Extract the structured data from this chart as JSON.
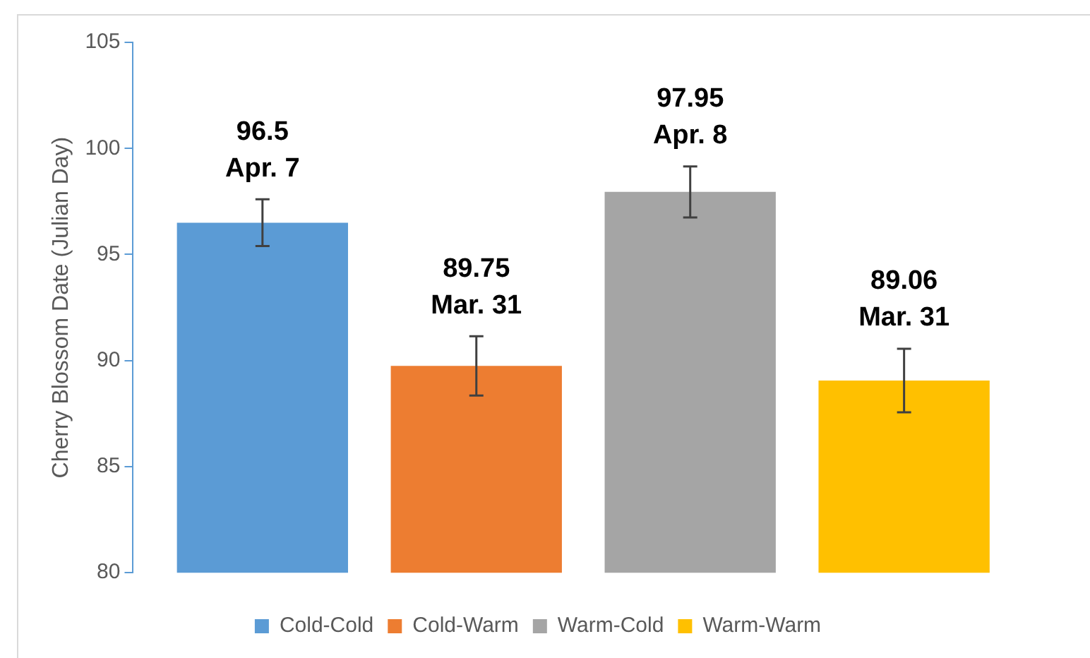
{
  "chart_data": {
    "type": "bar",
    "ylabel": "Cherry Blossom Date (Julian Day)",
    "categories": [
      null
    ],
    "ylim": [
      80,
      105
    ],
    "yticks": [
      80,
      85,
      90,
      95,
      100,
      105
    ],
    "grid": false,
    "legend": "bottom",
    "series": [
      {
        "name": "Cold-Cold",
        "color": "#5b9bd5",
        "values": [
          96.5
        ],
        "errors": [
          1.1
        ],
        "value_labels": [
          "96.5\nApr. 7"
        ]
      },
      {
        "name": "Cold-Warm",
        "color": "#ed7d31",
        "values": [
          89.75
        ],
        "errors": [
          1.4
        ],
        "value_labels": [
          "89.75\nMar. 31"
        ]
      },
      {
        "name": "Warm-Cold",
        "color": "#a5a5a5",
        "values": [
          97.95
        ],
        "errors": [
          1.2
        ],
        "value_labels": [
          "97.95\nApr. 8"
        ]
      },
      {
        "name": "Warm-Warm",
        "color": "#ffc000",
        "values": [
          89.06
        ],
        "errors": [
          1.5
        ],
        "value_labels": [
          "89.06\nMar. 31"
        ]
      }
    ]
  }
}
